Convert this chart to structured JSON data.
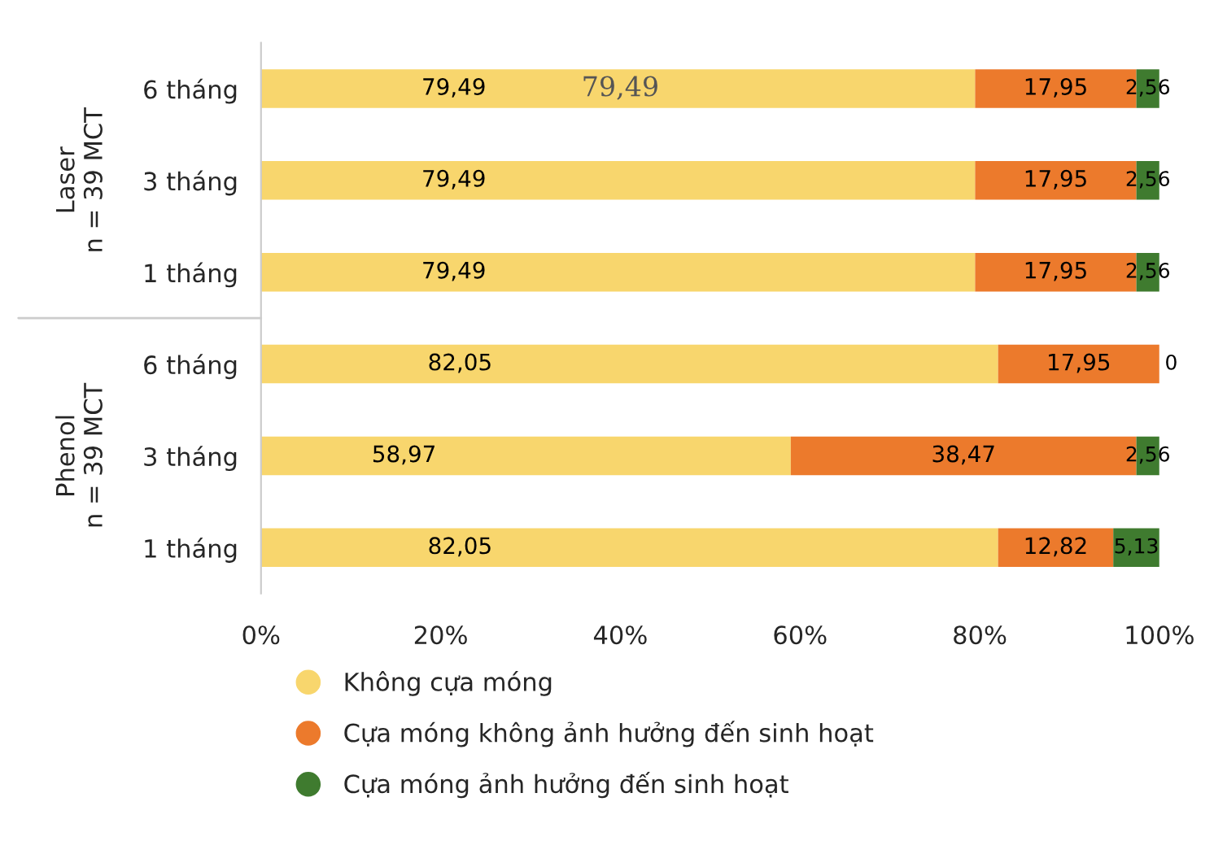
{
  "chart_data": {
    "type": "bar",
    "orientation": "horizontal",
    "stacked": true,
    "categories": [
      "6 tháng",
      "3 tháng",
      "1 tháng",
      "6 tháng",
      "3 tháng",
      "1 tháng"
    ],
    "series": [
      {
        "name": "Không cựa móng",
        "color": "#f8d66d",
        "values": [
          79.49,
          79.49,
          79.49,
          82.05,
          58.97,
          82.05
        ],
        "value_labels": [
          "79,49",
          "79,49",
          "79,49",
          "82,05",
          "58,97",
          "82,05"
        ]
      },
      {
        "name": "Cựa móng không ảnh hưởng đến sinh hoạt",
        "color": "#ec7a2c",
        "values": [
          17.95,
          17.95,
          17.95,
          17.95,
          38.47,
          12.82
        ],
        "value_labels": [
          "17,95",
          "17,95",
          "17,95",
          "17,95",
          "38,47",
          "12,82"
        ]
      },
      {
        "name": "Cựa móng ảnh hưởng đến sinh hoạt",
        "color": "#3f7b2f",
        "values": [
          2.56,
          2.56,
          2.56,
          0,
          2.56,
          5.13
        ],
        "value_labels": [
          "2,56",
          "2,56",
          "2,56",
          "0",
          "2,56",
          "5,13"
        ]
      }
    ],
    "xlim": [
      0,
      100
    ],
    "xticks": [
      {
        "value": 0,
        "label": "0%"
      },
      {
        "value": 20,
        "label": "20%"
      },
      {
        "value": 40,
        "label": "40%"
      },
      {
        "value": 60,
        "label": "60%"
      },
      {
        "value": 80,
        "label": "80%"
      },
      {
        "value": 100,
        "label": "100%"
      }
    ],
    "annotations": [
      "Laser\nn = 39 MCT",
      "Phenol\nn = 39 MCT",
      "79,49"
    ],
    "legend": "bottom",
    "grid": false
  }
}
